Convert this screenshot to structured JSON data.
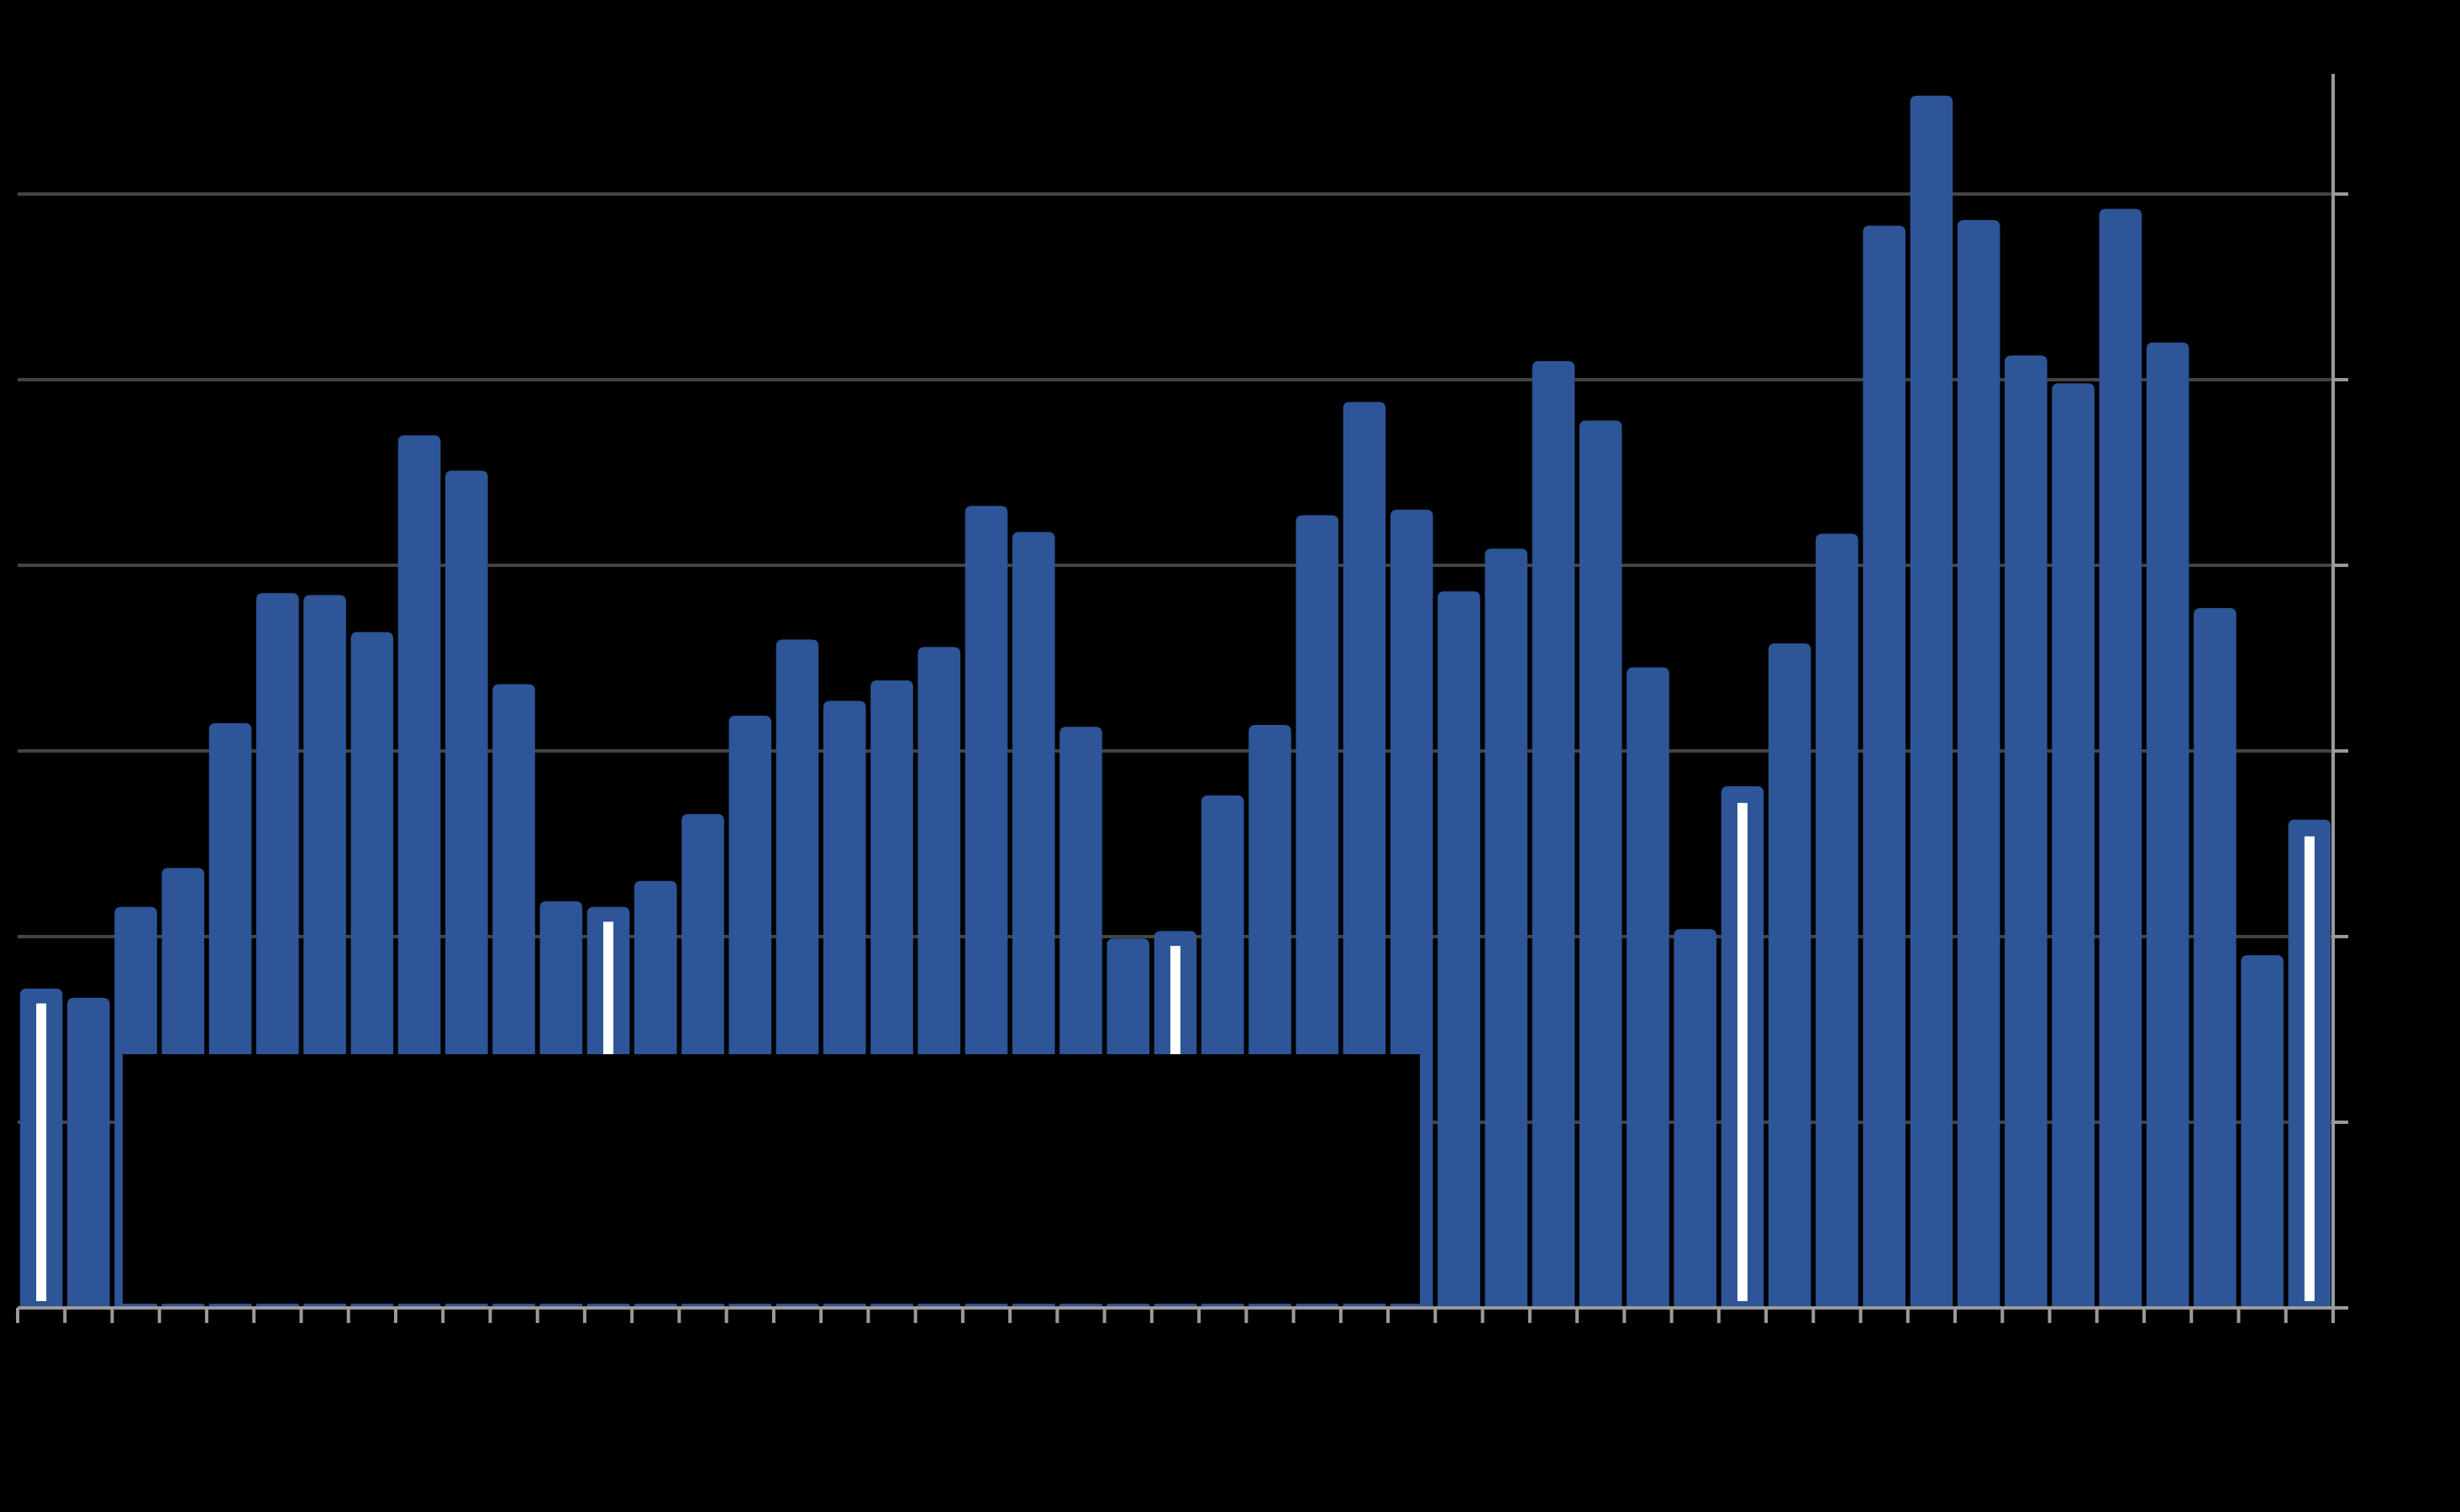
{
  "chart_data": {
    "type": "bar",
    "title": "",
    "xlabel": "",
    "ylabel": "",
    "ylim": [
      0,
      6.6
    ],
    "yticks": [
      0,
      1,
      2,
      3,
      4,
      5,
      6
    ],
    "grid": true,
    "legend": "none",
    "colors": {
      "background": "#000000",
      "bar": "#2d5597",
      "marker": "#ffffff",
      "grid": "#444444",
      "axis": "#9a9a9a",
      "overlay": "#000000"
    },
    "values": [
      1.72,
      1.67,
      2.16,
      2.37,
      3.15,
      3.85,
      3.84,
      3.64,
      4.7,
      4.51,
      3.36,
      2.19,
      2.16,
      2.3,
      2.66,
      3.19,
      3.6,
      3.27,
      3.38,
      3.56,
      4.32,
      4.18,
      3.13,
      1.99,
      2.03,
      2.76,
      3.14,
      4.27,
      4.88,
      4.3,
      3.86,
      4.09,
      5.1,
      4.78,
      3.45,
      2.04,
      2.81,
      3.58,
      4.17,
      5.83,
      6.53,
      5.86,
      5.13,
      4.98,
      5.92,
      5.2,
      3.77,
      1.9,
      2.63
    ],
    "marked_indices": [
      0,
      12,
      24,
      36,
      48
    ],
    "marker_values": [
      1.64,
      2.08,
      1.95,
      2.72,
      2.54
    ]
  }
}
